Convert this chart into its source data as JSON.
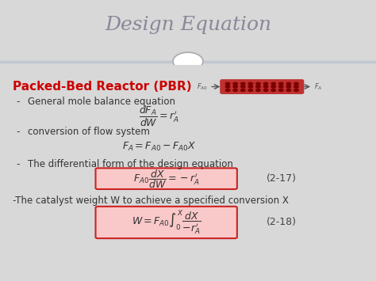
{
  "title": "Design Equation",
  "title_fontsize": 18,
  "title_color": "#888899",
  "bg_color": "#ffffff",
  "header_bg": "#c0c8d0",
  "content_bg": "#f0f0f0",
  "pbr_title": "Packed-Bed Reactor (PBR)",
  "pbr_color": "#cc0000",
  "pbr_fontsize": 11,
  "bullet1": "General mole balance equation",
  "eq1": "$\\dfrac{dF_A}{dW} = r_A^{\\prime}$",
  "bullet2": "conversion of flow system",
  "eq2": "$F_A = F_{A0} - F_{A0}X$",
  "bullet3": "The differential form of the design equation",
  "eq3": "$F_{A0}\\dfrac{dX}{dW} = -r_A^{\\prime}$",
  "label3": "(2-17)",
  "bullet4": "-The catalyst weight W to achieve a specified conversion X",
  "eq4": "$W = F_{A0}\\int_0^X \\dfrac{dX}{-r_A^{\\prime}}$",
  "label4": "(2-18)",
  "box_facecolor": "#f9c8c8",
  "box_edgecolor": "#cc2222",
  "text_fontsize": 8.5,
  "label_fontsize": 9,
  "eq_fontsize": 9
}
